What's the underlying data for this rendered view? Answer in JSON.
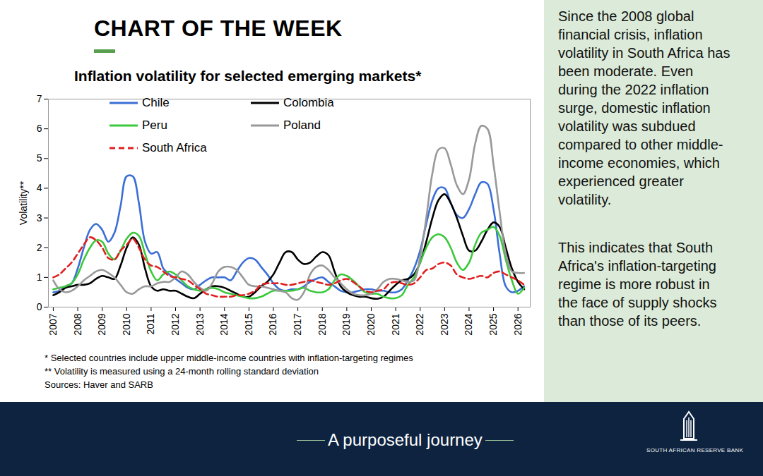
{
  "header": "CHART OF THE WEEK",
  "sidebar": [
    "Since the 2008 global financial crisis, inflation volatility in South Africa has been moderate. Even during the 2022 inflation surge, domestic inflation volatility was subdued compared to other middle-income economies, which experienced greater volatility.",
    "This indicates that South Africa's inflation-targeting regime is more robust in the face of supply shocks than those of its peers."
  ],
  "footer": {
    "tagline": "A purposeful journey",
    "logo_text": "SOUTH AFRICAN RESERVE BANK"
  },
  "chart_data": {
    "type": "line",
    "title": "Inflation volatility for selected emerging markets*",
    "y_label": "Volatility**",
    "notes": [
      "* Selected countries include upper middle-income countries with inflation-targeting regimes",
      "** Volatility is measured using a 24-month rolling standard deviation",
      "Sources: Haver and SARB"
    ],
    "legend": "top-left",
    "grid": false,
    "xlim": [
      2006.8,
      2026.5
    ],
    "xticks": [
      2007,
      2008,
      2009,
      2010,
      2011,
      2012,
      2013,
      2014,
      2015,
      2016,
      2017,
      2018,
      2019,
      2020,
      2021,
      2022,
      2023,
      2024,
      2025,
      2026
    ],
    "ylim": [
      0,
      7
    ],
    "yticks": [
      0,
      1,
      2,
      3,
      4,
      5,
      6,
      7
    ],
    "x": [
      2007,
      2007.25,
      2007.5,
      2007.75,
      2008,
      2008.25,
      2008.5,
      2008.75,
      2009,
      2009.25,
      2009.5,
      2009.75,
      2010,
      2010.25,
      2010.5,
      2010.75,
      2011,
      2011.25,
      2011.5,
      2011.75,
      2012,
      2012.25,
      2012.5,
      2012.75,
      2013,
      2013.25,
      2013.5,
      2013.75,
      2014,
      2014.25,
      2014.5,
      2014.75,
      2015,
      2015.25,
      2015.5,
      2015.75,
      2016,
      2016.25,
      2016.5,
      2016.75,
      2017,
      2017.25,
      2017.5,
      2017.75,
      2018,
      2018.25,
      2018.5,
      2018.75,
      2019,
      2019.25,
      2019.5,
      2019.75,
      2020,
      2020.25,
      2020.5,
      2020.75,
      2021,
      2021.25,
      2021.5,
      2021.75,
      2022,
      2022.25,
      2022.5,
      2022.75,
      2023,
      2023.25,
      2023.5,
      2023.75,
      2024,
      2024.25,
      2024.5,
      2024.75,
      2025,
      2025.25,
      2025.5,
      2025.75,
      2026,
      2026.25
    ],
    "series": [
      {
        "name": "Chile",
        "color": "#3b6fd6",
        "line_style": "solid",
        "values": [
          0.5,
          0.55,
          0.7,
          0.8,
          1.3,
          2.0,
          2.6,
          2.8,
          2.6,
          2.2,
          2.5,
          3.4,
          4.4,
          4.4,
          3.5,
          2.2,
          1.8,
          1.85,
          1.3,
          1.1,
          0.95,
          0.8,
          0.65,
          0.6,
          0.75,
          0.9,
          1.0,
          1.0,
          1.0,
          0.9,
          1.2,
          1.5,
          1.65,
          1.6,
          1.35,
          1.1,
          0.8,
          0.6,
          0.55,
          0.6,
          0.6,
          0.7,
          0.85,
          0.95,
          1.0,
          0.85,
          0.7,
          0.55,
          0.5,
          0.5,
          0.55,
          0.6,
          0.6,
          0.55,
          0.55,
          0.5,
          0.5,
          0.6,
          0.9,
          1.3,
          1.9,
          2.8,
          3.6,
          4.0,
          4.0,
          3.5,
          3.1,
          3.0,
          3.3,
          3.8,
          4.2,
          4.15,
          3.3,
          1.8,
          0.7,
          0.5,
          0.55,
          0.7
        ]
      },
      {
        "name": "Colombia",
        "color": "#000000",
        "line_style": "solid",
        "values": [
          0.4,
          0.5,
          0.65,
          0.7,
          0.75,
          0.75,
          0.8,
          0.95,
          1.05,
          1.0,
          0.95,
          1.4,
          2.0,
          2.35,
          2.1,
          1.3,
          0.7,
          0.55,
          0.6,
          0.55,
          0.55,
          0.45,
          0.35,
          0.3,
          0.45,
          0.6,
          0.7,
          0.7,
          0.65,
          0.55,
          0.45,
          0.35,
          0.35,
          0.5,
          0.7,
          0.85,
          1.1,
          1.5,
          1.85,
          1.85,
          1.6,
          1.45,
          1.5,
          1.7,
          1.85,
          1.75,
          1.2,
          0.7,
          0.5,
          0.4,
          0.35,
          0.35,
          0.3,
          0.28,
          0.35,
          0.55,
          0.75,
          0.9,
          0.95,
          1.1,
          1.5,
          2.2,
          3.0,
          3.6,
          3.8,
          3.5,
          3.0,
          2.4,
          1.9,
          1.9,
          2.2,
          2.6,
          2.85,
          2.7,
          2.0,
          1.3,
          0.85,
          0.6
        ]
      },
      {
        "name": "Peru",
        "color": "#3cc83c",
        "line_style": "solid",
        "values": [
          0.6,
          0.65,
          0.7,
          0.8,
          1.1,
          1.6,
          2.0,
          2.25,
          2.2,
          1.8,
          1.6,
          1.9,
          2.3,
          2.5,
          2.4,
          1.8,
          1.2,
          0.9,
          1.1,
          1.2,
          1.1,
          0.9,
          0.7,
          0.6,
          0.55,
          0.6,
          0.65,
          0.6,
          0.5,
          0.45,
          0.4,
          0.35,
          0.3,
          0.3,
          0.35,
          0.45,
          0.55,
          0.55,
          0.55,
          0.55,
          0.6,
          0.65,
          0.55,
          0.5,
          0.5,
          0.6,
          0.9,
          1.1,
          1.05,
          0.9,
          0.7,
          0.5,
          0.45,
          0.45,
          0.35,
          0.3,
          0.3,
          0.4,
          0.75,
          1.0,
          1.5,
          2.0,
          2.35,
          2.45,
          2.35,
          2.0,
          1.5,
          1.25,
          1.5,
          2.1,
          2.5,
          2.6,
          2.7,
          2.4,
          1.6,
          0.9,
          0.45,
          0.65
        ]
      },
      {
        "name": "Poland",
        "color": "#999999",
        "line_style": "solid",
        "values": [
          0.9,
          0.6,
          0.5,
          0.55,
          0.7,
          0.9,
          1.05,
          1.2,
          1.25,
          1.15,
          1.0,
          0.75,
          0.5,
          0.45,
          0.6,
          0.7,
          0.7,
          0.8,
          0.85,
          0.85,
          1.0,
          1.2,
          1.1,
          0.85,
          0.65,
          0.55,
          0.8,
          1.2,
          1.35,
          1.35,
          1.25,
          1.0,
          0.75,
          0.7,
          0.7,
          0.65,
          0.6,
          0.55,
          0.5,
          0.3,
          0.25,
          0.5,
          1.1,
          1.35,
          1.4,
          1.25,
          1.0,
          0.8,
          0.6,
          0.45,
          0.4,
          0.4,
          0.45,
          0.6,
          0.85,
          0.95,
          0.95,
          0.9,
          0.85,
          0.9,
          1.7,
          3.0,
          4.5,
          5.3,
          5.35,
          4.8,
          4.1,
          3.8,
          4.3,
          5.5,
          6.1,
          6.0,
          4.8,
          3.2,
          1.8,
          1.2,
          1.15,
          1.15
        ]
      },
      {
        "name": "South Africa",
        "color": "#e02020",
        "line_style": "dashed",
        "values": [
          1.0,
          1.1,
          1.3,
          1.5,
          1.8,
          2.1,
          2.35,
          2.25,
          2.0,
          1.65,
          1.6,
          1.9,
          2.1,
          2.3,
          2.0,
          1.6,
          1.4,
          1.35,
          1.2,
          1.05,
          1.0,
          0.95,
          0.9,
          0.75,
          0.6,
          0.45,
          0.4,
          0.35,
          0.35,
          0.35,
          0.4,
          0.4,
          0.45,
          0.55,
          0.75,
          0.8,
          0.8,
          0.8,
          0.75,
          0.75,
          0.8,
          0.85,
          0.9,
          0.85,
          0.8,
          0.75,
          0.8,
          0.9,
          0.95,
          0.85,
          0.7,
          0.55,
          0.5,
          0.55,
          0.6,
          0.8,
          0.85,
          0.8,
          0.75,
          0.8,
          1.0,
          1.25,
          1.3,
          1.45,
          1.5,
          1.4,
          1.1,
          1.0,
          0.95,
          1.0,
          1.05,
          1.0,
          1.15,
          1.2,
          1.1,
          1.0,
          0.9,
          0.75
        ]
      }
    ]
  }
}
